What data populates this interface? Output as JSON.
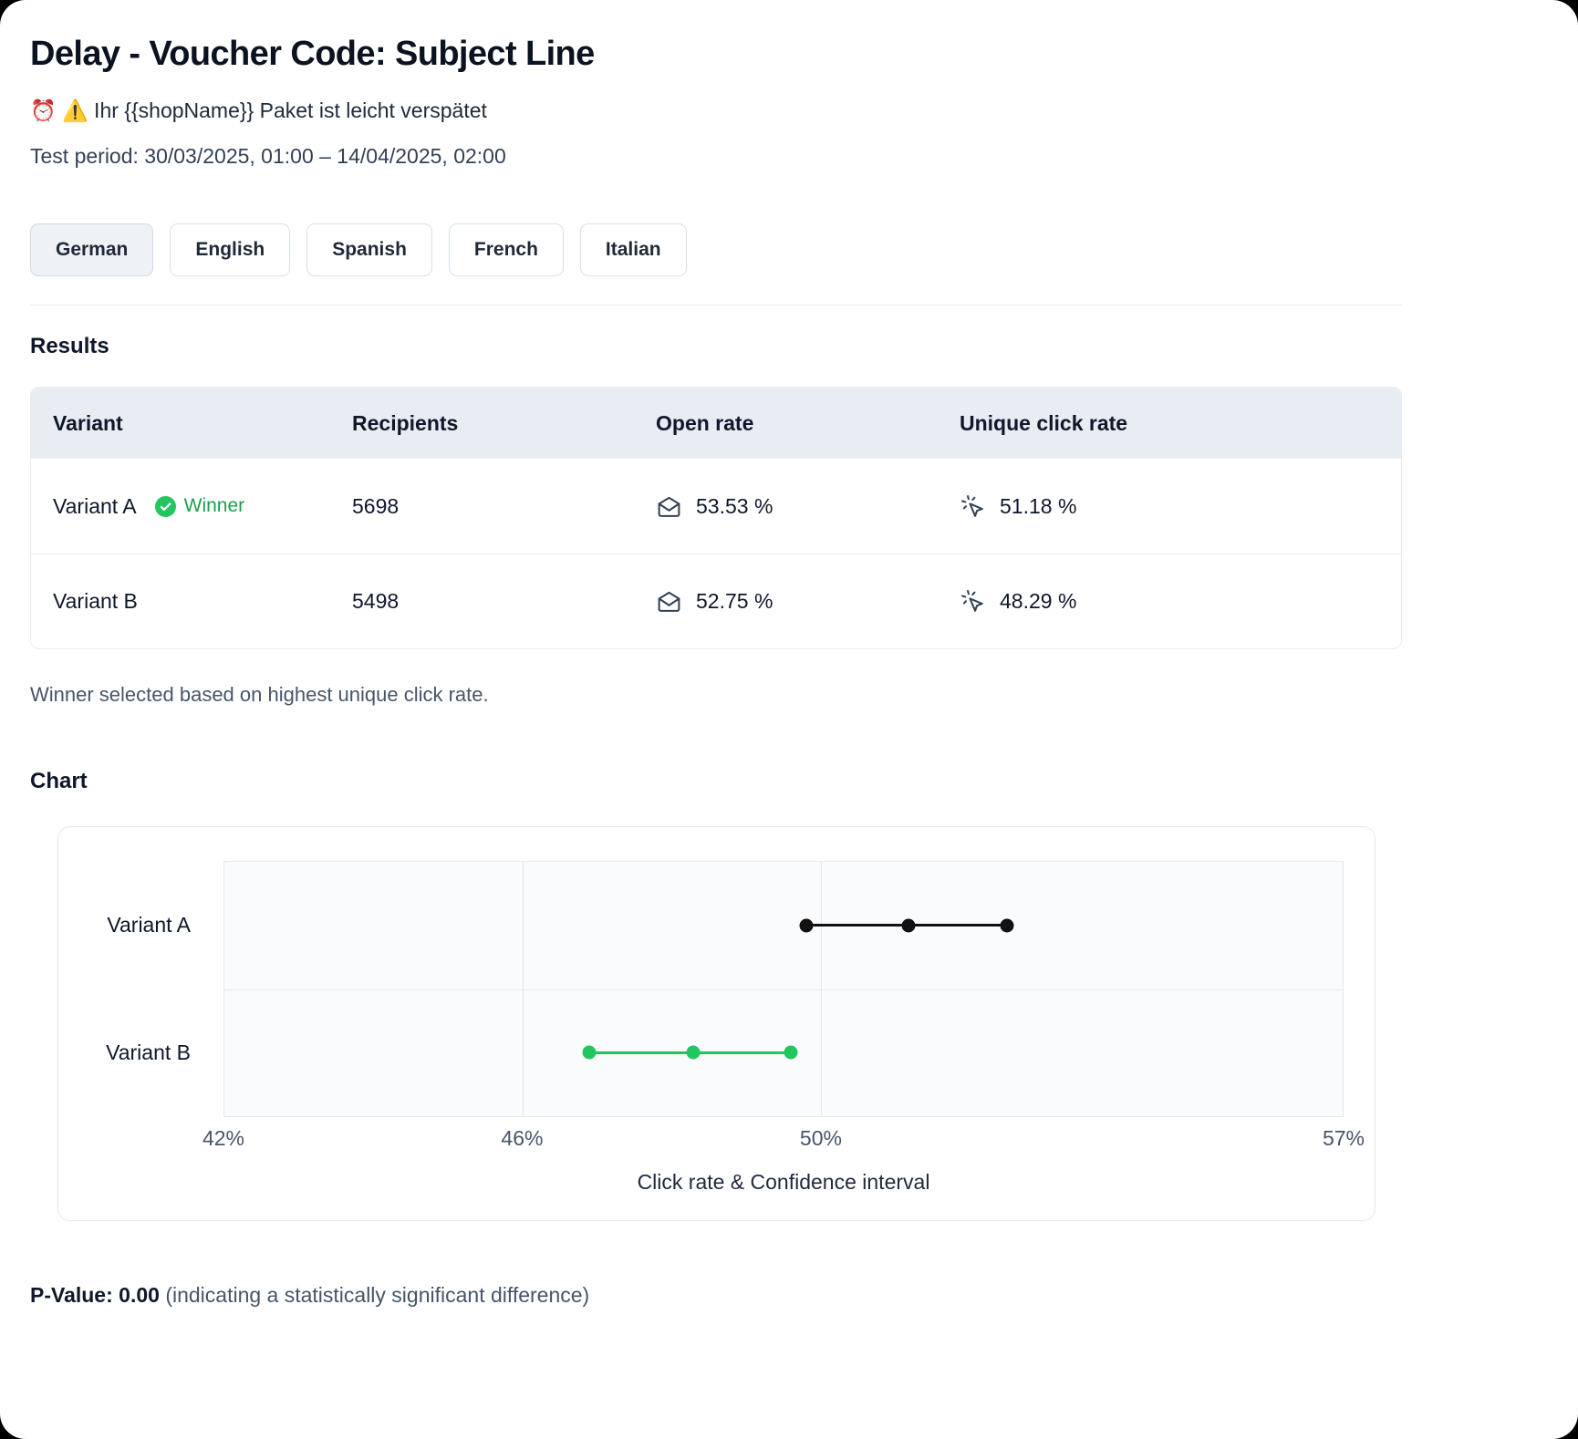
{
  "page": {
    "title": "Delay - Voucher Code: Subject Line",
    "subject_line": "⏰ ⚠️ Ihr {{shopName}} Paket ist leicht verspätet",
    "test_period": "Test period: 30/03/2025, 01:00 – 14/04/2025, 02:00"
  },
  "languages": [
    {
      "label": "German",
      "active": true
    },
    {
      "label": "English",
      "active": false
    },
    {
      "label": "Spanish",
      "active": false
    },
    {
      "label": "French",
      "active": false
    },
    {
      "label": "Italian",
      "active": false
    }
  ],
  "results": {
    "heading": "Results",
    "columns": [
      "Variant",
      "Recipients",
      "Open rate",
      "Unique click rate"
    ],
    "rows": [
      {
        "variant": "Variant A",
        "winner_label": "Winner",
        "recipients": "5698",
        "open_rate": "53.53 %",
        "unique_click_rate": "51.18 %"
      },
      {
        "variant": "Variant B",
        "recipients": "5498",
        "open_rate": "52.75 %",
        "unique_click_rate": "48.29 %"
      }
    ],
    "footnote": "Winner selected based on highest unique click rate."
  },
  "icons": {
    "winner": "check-circle",
    "open_rate": "mail-open",
    "unique_click_rate": "cursor-click"
  },
  "chart_section": {
    "heading": "Chart"
  },
  "chart_data": {
    "type": "scatter",
    "subtype": "dot-plot-with-confidence-intervals",
    "categories": [
      "Variant A",
      "Variant B"
    ],
    "series": [
      {
        "name": "Variant A",
        "values": [
          49.8,
          51.18,
          52.5
        ],
        "color": "#111111"
      },
      {
        "name": "Variant B",
        "values": [
          46.9,
          48.29,
          49.6
        ],
        "color": "#22c55e"
      }
    ],
    "x_ticks": [
      {
        "value": 42,
        "label": "42%"
      },
      {
        "value": 46,
        "label": "46%"
      },
      {
        "value": 50,
        "label": "50%"
      },
      {
        "value": 57,
        "label": "57%"
      }
    ],
    "xlim": [
      42,
      57
    ],
    "xlabel": "Click rate & Confidence interval",
    "grid": true,
    "legend": false
  },
  "pvalue": {
    "label": "P-Value:",
    "value": "0.00",
    "note": "(indicating a statistically significant difference)"
  }
}
